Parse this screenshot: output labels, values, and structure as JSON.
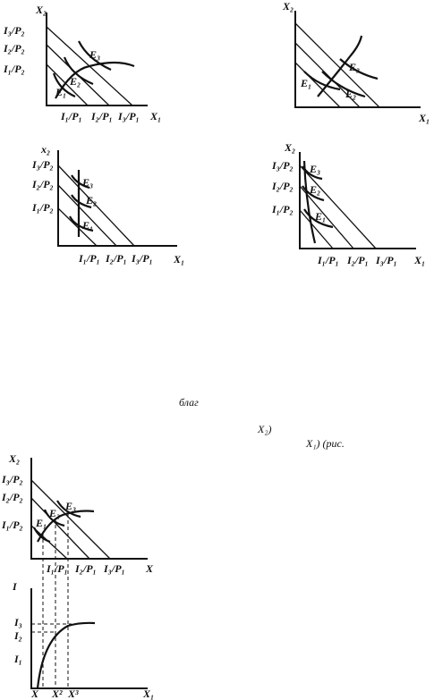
{
  "figures": [
    {
      "labels": [
        "X₂",
        "I₃/P₂",
        "I₂/P₂",
        "I₁/P₂",
        "E₃",
        "E₂",
        "E₁",
        "I₁/P₁",
        "I₂/P₁",
        "I₃/P₁",
        "X₁"
      ]
    },
    {
      "labels": [
        "X₂",
        "E₃",
        "E₁",
        "E₂",
        "X₁"
      ]
    },
    {
      "labels": [
        "x₂",
        "I₃/P₂",
        "I₂/P₂",
        "I₁/P₂",
        "E₃",
        "E₂",
        "E₁",
        "I₁/P₁",
        "I₂/P₁",
        "I₃/P₁",
        "X₁"
      ]
    },
    {
      "labels": [
        "X₂",
        "I₃/P₂",
        "I₂/P₂",
        "I₁/P₂",
        "E₃",
        "E₂",
        "E₁",
        "I₁/P₁",
        "I₂/P₁",
        "I₃/P₁",
        "X₁"
      ]
    },
    {
      "labels": [
        "X₂",
        "I₃/P₂",
        "I₂/P₂",
        "I₁/P₂",
        "E₁",
        "E₂",
        "E₃",
        "I₁/P₁",
        "I₂/P₁",
        "I₃/P₁",
        "X"
      ]
    },
    {
      "labels": [
        "I",
        "I₃",
        "I₂",
        "I₁",
        "X",
        "X²",
        "X³",
        "X₁"
      ]
    }
  ],
  "text": [
    "благ",
    "X₂)",
    "X₁) (рис."
  ]
}
